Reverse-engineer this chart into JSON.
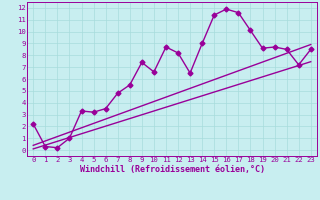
{
  "title": "",
  "xlabel": "Windchill (Refroidissement éolien,°C)",
  "bg_color": "#c8eef0",
  "line_color": "#990099",
  "x_data": [
    0,
    1,
    2,
    3,
    4,
    5,
    6,
    7,
    8,
    9,
    10,
    11,
    12,
    13,
    14,
    15,
    16,
    17,
    18,
    19,
    20,
    21,
    22,
    23
  ],
  "y_main": [
    2.2,
    0.3,
    0.2,
    1.0,
    3.3,
    3.2,
    3.5,
    4.8,
    5.5,
    7.4,
    6.6,
    8.7,
    8.2,
    6.5,
    9.0,
    11.4,
    11.9,
    11.6,
    10.1,
    8.6,
    8.7,
    8.5,
    7.2,
    8.5
  ],
  "y_lin1": [
    0.1,
    0.42,
    0.74,
    1.06,
    1.38,
    1.7,
    2.02,
    2.34,
    2.66,
    2.98,
    3.3,
    3.62,
    3.94,
    4.26,
    4.58,
    4.9,
    5.22,
    5.54,
    5.86,
    6.18,
    6.5,
    6.82,
    7.14,
    7.46
  ],
  "y_lin2": [
    0.4,
    0.77,
    1.14,
    1.51,
    1.88,
    2.25,
    2.62,
    2.99,
    3.36,
    3.73,
    4.1,
    4.47,
    4.84,
    5.21,
    5.58,
    5.95,
    6.32,
    6.69,
    7.06,
    7.43,
    7.8,
    8.17,
    8.54,
    8.91
  ],
  "xlim": [
    -0.5,
    23.5
  ],
  "ylim": [
    -0.5,
    12.5
  ],
  "yticks": [
    0,
    1,
    2,
    3,
    4,
    5,
    6,
    7,
    8,
    9,
    10,
    11,
    12
  ],
  "xticks": [
    0,
    1,
    2,
    3,
    4,
    5,
    6,
    7,
    8,
    9,
    10,
    11,
    12,
    13,
    14,
    15,
    16,
    17,
    18,
    19,
    20,
    21,
    22,
    23
  ],
  "grid_color": "#a8dcdc",
  "marker": "D",
  "marker_size": 2.5,
  "line_width": 1.0,
  "font_color": "#990099",
  "label_fontsize": 6.0,
  "tick_fontsize": 5.2,
  "title_fontsize": 6.5
}
